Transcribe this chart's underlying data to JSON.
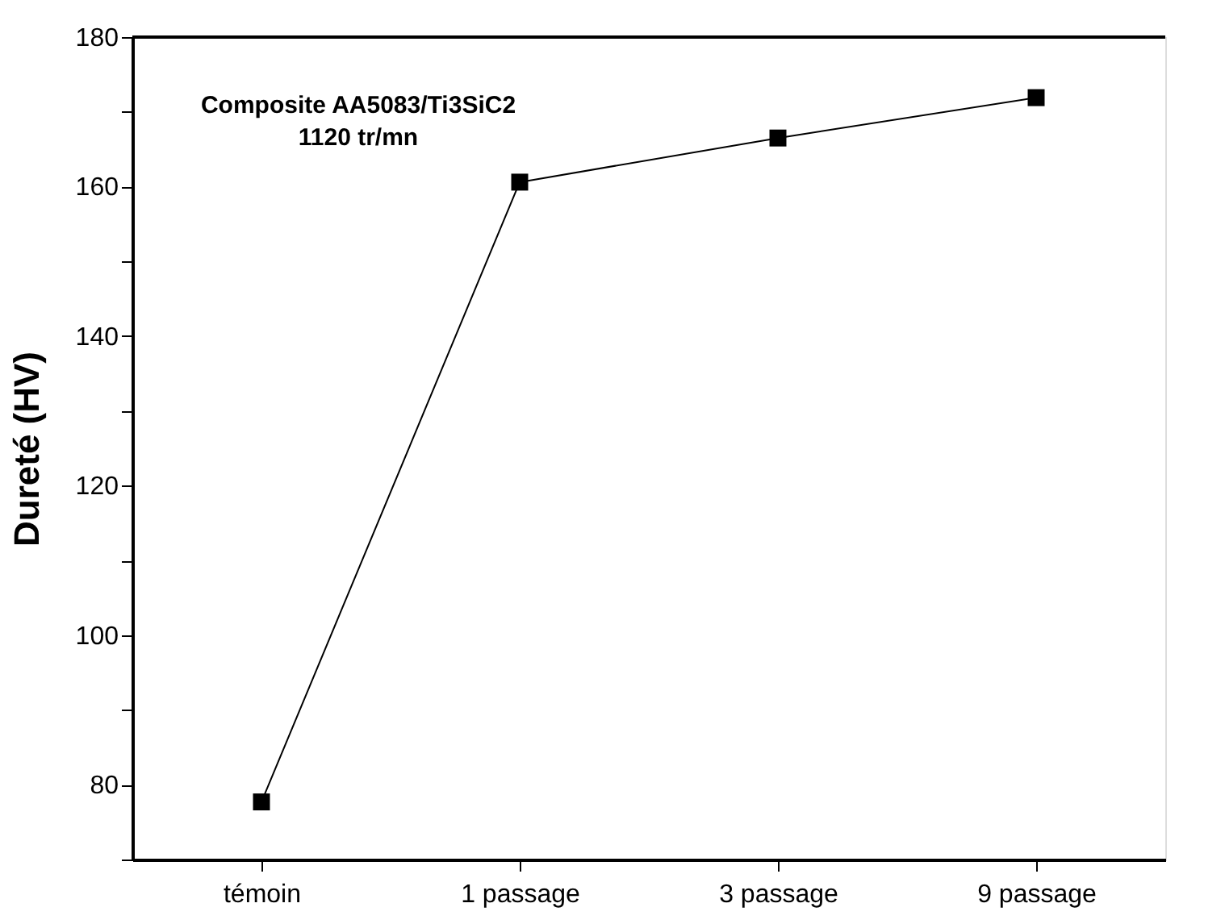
{
  "chart_data": {
    "type": "line",
    "ylabel": "Dureté (HV)",
    "categories": [
      "témoin",
      "1 passage",
      "3 passage",
      "9 passage"
    ],
    "series": [
      {
        "color": "#000000",
        "values": [
          77.7,
          160.6,
          166.5,
          171.9
        ]
      }
    ],
    "ylim": [
      70,
      180
    ],
    "yticks": [
      {
        "value": 70,
        "label": null
      },
      80,
      {
        "value": 90,
        "label": null
      },
      100,
      {
        "value": 110,
        "label": null
      },
      120,
      {
        "value": 130,
        "label": null
      },
      140,
      {
        "value": 150,
        "label": null
      },
      160,
      {
        "value": 170,
        "label": null
      },
      180
    ],
    "annotations": [
      "Composite AA5083/Ti3SiC2\n1120 tr/mn"
    ],
    "marker": "square",
    "line_style": "solid",
    "grid": false
  }
}
